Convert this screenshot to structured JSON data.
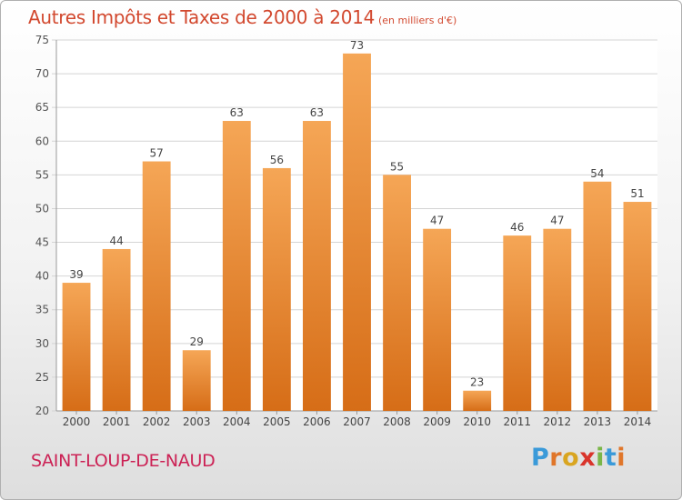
{
  "title": "Autres Impôts et Taxes de 2000 à 2014",
  "title_unit": "(en milliers d'€)",
  "commune": "SAINT-LOUP-DE-NAUD",
  "logo": {
    "text": "Proxiti",
    "letter_colors": [
      "#3a9ad9",
      "#e0762a",
      "#d9a520",
      "#d9342b",
      "#7ab648",
      "#3a9ad9",
      "#e0762a"
    ]
  },
  "colors": {
    "bar_top": "#f5a656",
    "bar_bottom": "#d66d17",
    "title": "#d2482e",
    "commune": "#cc2255"
  },
  "chart_data": {
    "type": "bar",
    "categories": [
      "2000",
      "2001",
      "2002",
      "2003",
      "2004",
      "2005",
      "2006",
      "2007",
      "2008",
      "2009",
      "2010",
      "2011",
      "2012",
      "2013",
      "2014"
    ],
    "values": [
      39,
      44,
      57,
      29,
      63,
      56,
      63,
      73,
      55,
      47,
      23,
      46,
      47,
      54,
      51
    ],
    "ylim": [
      20,
      75
    ],
    "yticks": [
      20,
      25,
      30,
      35,
      40,
      45,
      50,
      55,
      60,
      65,
      70,
      75
    ],
    "grid": "horizontal",
    "data_labels": true
  }
}
